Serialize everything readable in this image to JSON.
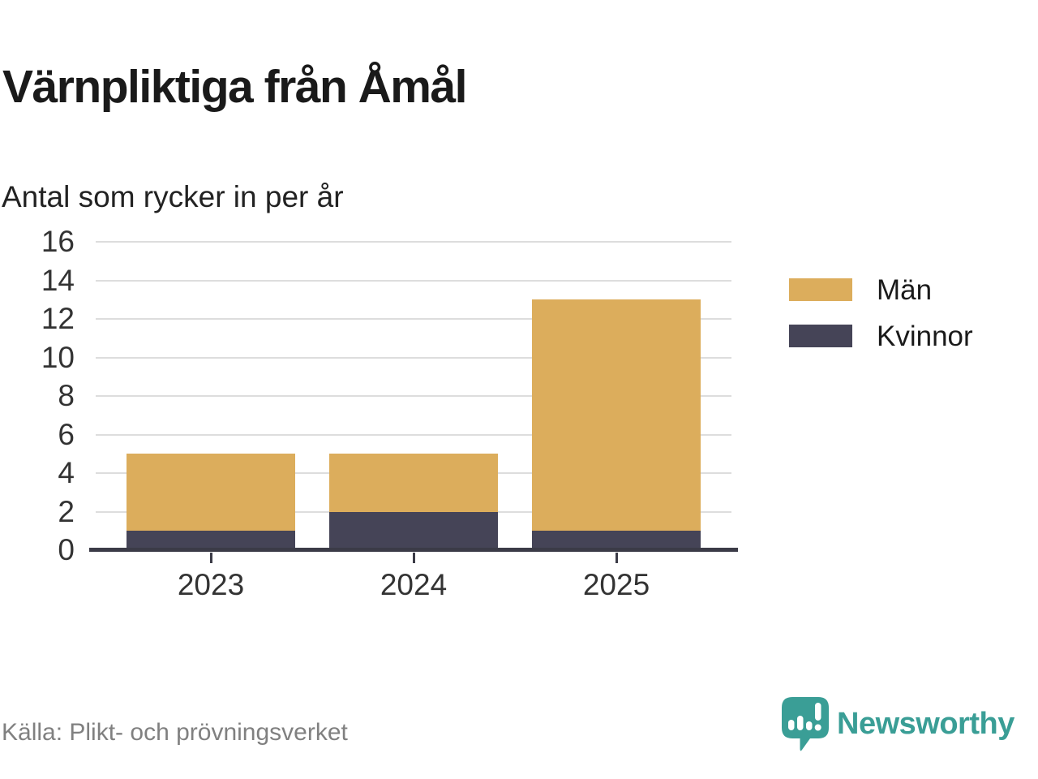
{
  "title": "Värnpliktiga från Åmål",
  "subtitle": "Antal som rycker in per år",
  "source": "Källa: Plikt- och prövningsverket",
  "branding": {
    "logo_text": "Newsworthy",
    "logo_icon": "speech-bubble-bar-chart-icon",
    "brand_color": "#3A9E96"
  },
  "colors": {
    "men": "#DCAD5C",
    "women": "#454457",
    "axis": "#3B3B47",
    "gridline": "#DDDDDD",
    "title_text": "#1A1A1A",
    "label_text": "#333333",
    "source_text": "#808080"
  },
  "chart_data": {
    "type": "bar",
    "stacked": true,
    "title": "Värnpliktiga från Åmål",
    "subtitle": "Antal som rycker in per år",
    "categories": [
      "2023",
      "2024",
      "2025"
    ],
    "series": [
      {
        "name": "Män",
        "color": "#DCAD5C",
        "values": [
          4,
          3,
          12
        ]
      },
      {
        "name": "Kvinnor",
        "color": "#454457",
        "values": [
          1,
          2,
          1
        ]
      }
    ],
    "stacked_totals": [
      5,
      5,
      13
    ],
    "xlabel": "",
    "ylabel": "",
    "ylim": [
      0,
      16
    ],
    "ytick_step": 2,
    "yticks": [
      0,
      2,
      4,
      6,
      8,
      10,
      12,
      14,
      16
    ],
    "grid": "horizontal",
    "legend_position": "right"
  }
}
